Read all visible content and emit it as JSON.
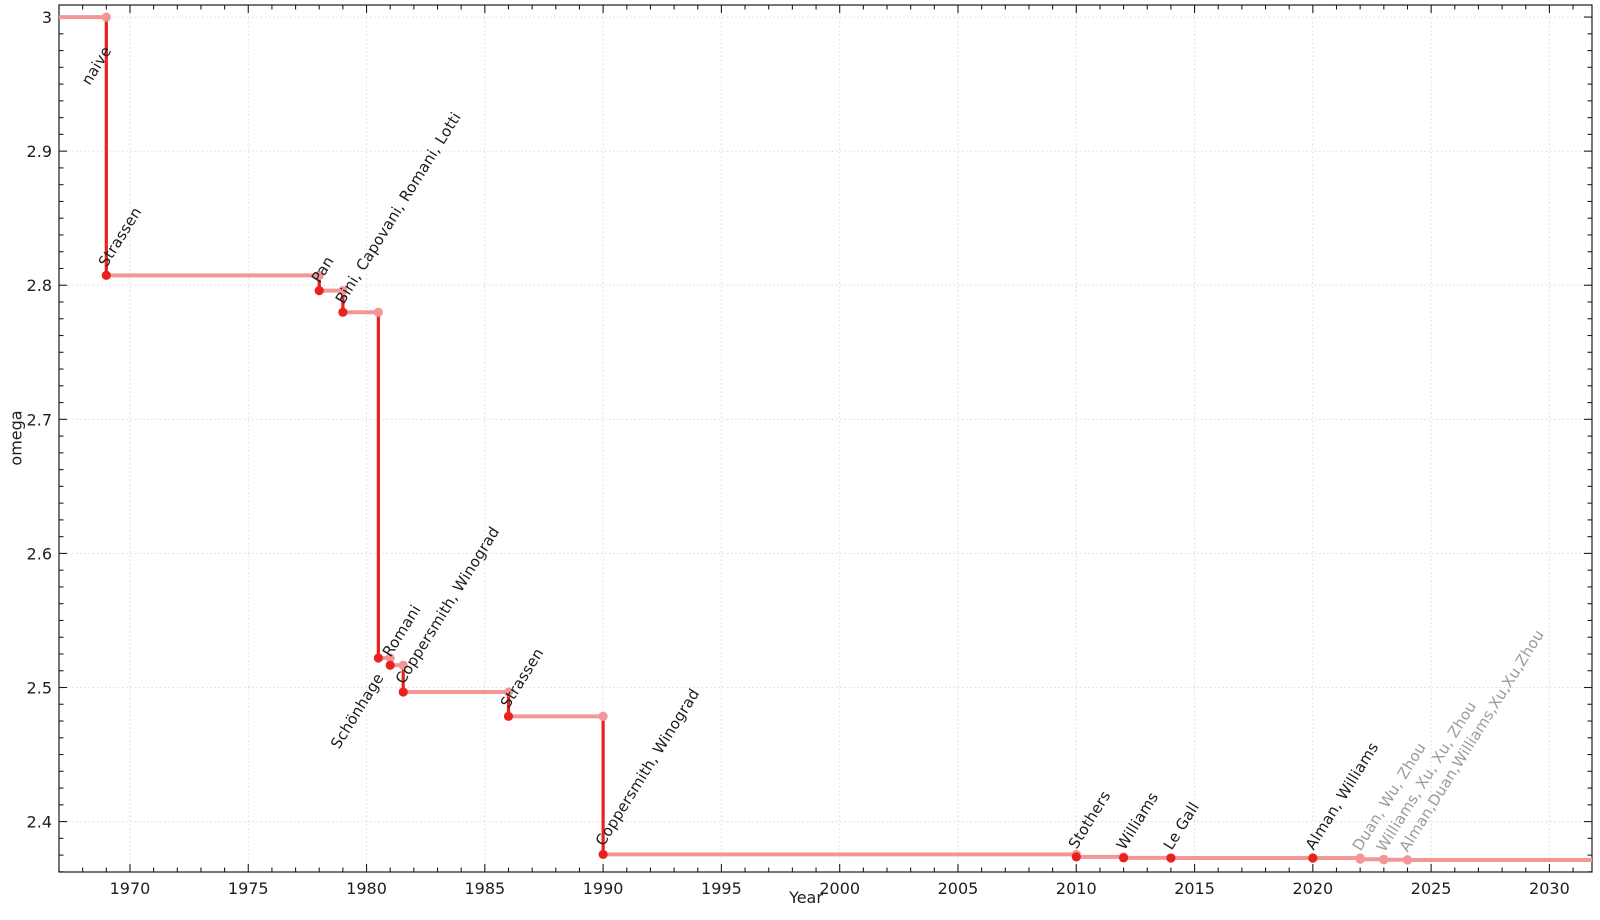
{
  "chart_data": {
    "type": "line",
    "step": true,
    "title": "",
    "xlabel": "Year",
    "ylabel": "omega",
    "xlim": [
      1967.0,
      2031.8
    ],
    "ylim": [
      2.3624,
      3.009
    ],
    "xticks": {
      "values": [
        1970,
        1975,
        1980,
        1985,
        1990,
        1995,
        2000,
        2005,
        2010,
        2015,
        2020,
        2025,
        2030
      ],
      "labels": [
        "1970",
        "1975",
        "1980",
        "1985",
        "1990",
        "1995",
        "2000",
        "2005",
        "2010",
        "2015",
        "2020",
        "2025",
        "2030"
      ],
      "minor_step": 1
    },
    "yticks": {
      "values": [
        2.4,
        2.5,
        2.6,
        2.7,
        2.8,
        2.9,
        3
      ],
      "labels": [
        "2.4",
        "2.5",
        "2.6",
        "2.7",
        "2.8",
        "2.9",
        "3"
      ],
      "minor_step": 0.0125
    },
    "grid": {
      "show": true,
      "style": "dotted",
      "on_major_ticks": true
    },
    "legend": "none",
    "start": {
      "omega": 3,
      "label": "naive",
      "label_placement": "below",
      "label_gap": 26
    },
    "events": [
      {
        "year": 1969,
        "omega": 2.8074,
        "label": "Strassen",
        "label_placement": "above",
        "provisional": false
      },
      {
        "year": 1978,
        "omega": 2.796,
        "label": "Pan",
        "label_placement": "above",
        "provisional": false
      },
      {
        "year": 1979,
        "omega": 2.7799,
        "label": "Bini, Capovani, Romani, Lotti",
        "label_placement": "above",
        "provisional": false
      },
      {
        "year": 1980.5,
        "omega": 2.522,
        "label": "Schönhage",
        "label_placement": "below",
        "label_gap": 12,
        "provisional": false
      },
      {
        "year": 1981,
        "omega": 2.5166,
        "label": "Romani",
        "label_placement": "above",
        "provisional": false
      },
      {
        "year": 1981.55,
        "omega": 2.4966,
        "label": "Coppersmith, Winograd",
        "label_placement": "above",
        "provisional": false
      },
      {
        "year": 1986,
        "omega": 2.4785,
        "label": "Strassen",
        "label_placement": "above",
        "provisional": false
      },
      {
        "year": 1990,
        "omega": 2.3755,
        "label": "Coppersmith, Winograd",
        "label_placement": "above",
        "provisional": false
      },
      {
        "year": 2010,
        "omega": 2.3737,
        "label": "Stothers",
        "label_placement": "above",
        "provisional": false
      },
      {
        "year": 2012,
        "omega": 2.3729,
        "label": "Williams",
        "label_placement": "above",
        "provisional": false
      },
      {
        "year": 2014,
        "omega": 2.3728,
        "label": "Le Gall",
        "label_placement": "above",
        "provisional": false
      },
      {
        "year": 2020,
        "omega": 2.37286,
        "label": "Alman, Williams",
        "label_placement": "above",
        "provisional": false
      },
      {
        "year": 2022,
        "omega": 2.37188,
        "label": "Duan, Wu, Zhou",
        "label_placement": "above",
        "provisional": true
      },
      {
        "year": 2023,
        "omega": 2.37155,
        "label": "Williams, Xu, Xu, Zhou",
        "label_placement": "above",
        "provisional": true
      },
      {
        "year": 2024,
        "omega": 2.37134,
        "label": "Alman,Duan,Williams,Xu,Xu,Zhou",
        "label_placement": "above",
        "provisional": true
      }
    ],
    "colors": {
      "line_strong": "#e8231e",
      "line_light": "#f29697",
      "marker_strong": "#e8231e",
      "marker_light": "#f29697",
      "label_black": "#1c1c1c",
      "label_gray": "#9b9b9b",
      "grid": "#dcdcdc",
      "frame": "#1c1c1c",
      "tick_text": "#1e1e1e"
    }
  }
}
